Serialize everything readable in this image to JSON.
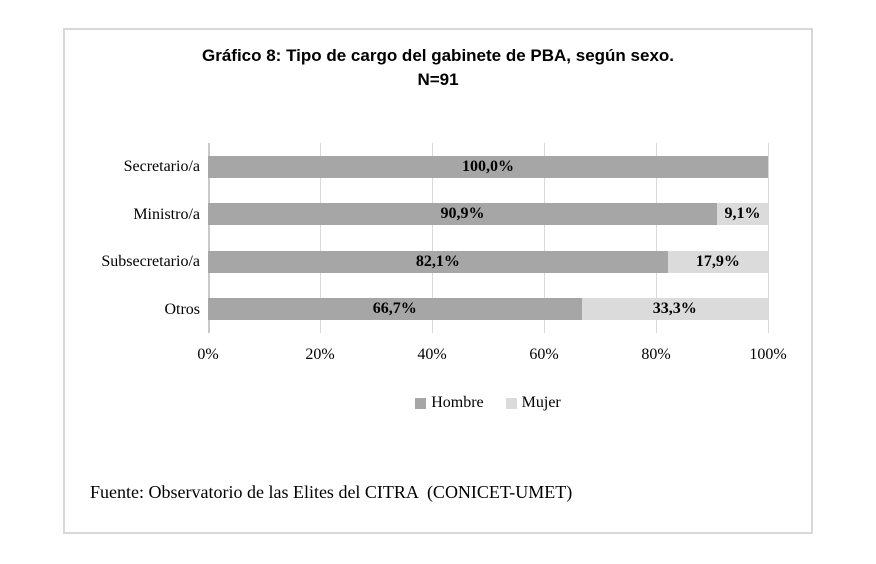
{
  "figure": {
    "title_line1": "Gráfico 8: Tipo de cargo del gabinete de PBA, según sexo.",
    "title_line2": "N=91",
    "source": "Fuente: Observatorio de las Elites del CITRA  (CONICET-UMET)"
  },
  "colors": {
    "hombre": "#a6a6a6",
    "mujer": "#dbdbdb",
    "gridline": "#d9d9d9",
    "axis_line": "#c9c9c9",
    "figure_border": "#d8d8d8",
    "text": "#000000"
  },
  "chart_data": {
    "type": "bar",
    "orientation": "horizontal",
    "stacked": true,
    "title": "Gráfico 8: Tipo de cargo del gabinete de PBA, según sexo. N=91",
    "categories": [
      "Secretario/a",
      "Ministro/a",
      "Subsecretario/a",
      "Otros"
    ],
    "series": [
      {
        "name": "Hombre",
        "color": "#a6a6a6",
        "values": [
          100.0,
          90.9,
          82.1,
          66.7
        ],
        "data_labels": [
          "100,0%",
          "90,9%",
          "82,1%",
          "66,7%"
        ]
      },
      {
        "name": "Mujer",
        "color": "#dbdbdb",
        "values": [
          0.0,
          9.1,
          17.9,
          33.3
        ],
        "data_labels": [
          "",
          "9,1%",
          "17,9%",
          "33,3%"
        ]
      }
    ],
    "x_ticks": [
      "0%",
      "20%",
      "40%",
      "60%",
      "80%",
      "100%"
    ],
    "xlim": [
      0,
      100
    ],
    "grid": "vertical",
    "legend": [
      "Hombre",
      "Mujer"
    ],
    "legend_position": "bottom"
  }
}
